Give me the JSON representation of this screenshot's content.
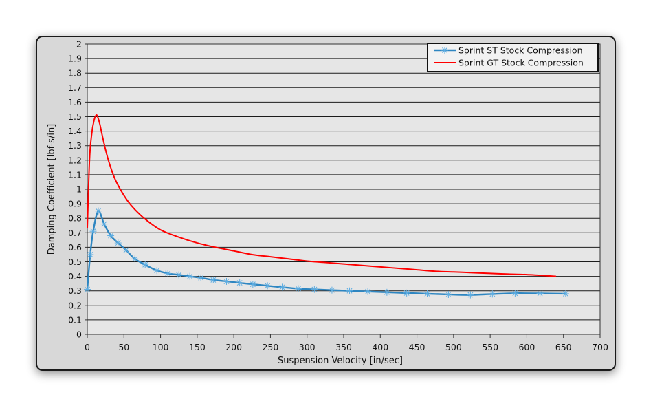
{
  "chart_data": {
    "type": "line",
    "xlabel": "Suspension Velocity [in/sec]",
    "ylabel": "Damping Coefficient  [lbf-s/in]",
    "xlim": [
      0,
      700
    ],
    "ylim": [
      0,
      2
    ],
    "x_ticks": [
      "0",
      "50",
      "100",
      "150",
      "200",
      "250",
      "300",
      "350",
      "400",
      "450",
      "500",
      "550",
      "600",
      "650",
      "700"
    ],
    "y_ticks": [
      "0",
      "0.1",
      "0.2",
      "0.3",
      "0.4",
      "0.5",
      "0.6",
      "0.7",
      "0.8",
      "0.9",
      "1",
      "1.1",
      "1.2",
      "1.3",
      "1.4",
      "1.5",
      "1.6",
      "1.7",
      "1.8",
      "1.9",
      "2"
    ],
    "grid": "horizontal",
    "legend_position": "top-right",
    "series": [
      {
        "name": "Sprint ST Stock Compression",
        "color": "#2e86c1",
        "marker": "asterisk",
        "x": [
          0,
          4,
          8,
          15,
          23,
          32,
          42,
          53,
          65,
          79,
          95,
          110,
          125,
          140,
          155,
          172,
          190,
          208,
          226,
          246,
          266,
          288,
          310,
          334,
          358,
          383,
          409,
          436,
          464,
          493,
          523,
          553,
          584,
          618,
          653
        ],
        "y": [
          0.31,
          0.55,
          0.71,
          0.85,
          0.76,
          0.68,
          0.63,
          0.58,
          0.52,
          0.48,
          0.44,
          0.42,
          0.41,
          0.4,
          0.39,
          0.375,
          0.365,
          0.355,
          0.345,
          0.335,
          0.325,
          0.315,
          0.31,
          0.305,
          0.3,
          0.295,
          0.29,
          0.285,
          0.28,
          0.275,
          0.272,
          0.278,
          0.283,
          0.282,
          0.28
        ]
      },
      {
        "name": "Sprint GT Stock Compression",
        "color": "#ff0000",
        "marker": "none",
        "x": [
          0,
          3,
          6,
          9,
          12,
          14,
          17,
          20,
          25,
          30,
          37,
          45,
          55,
          65,
          80,
          100,
          125,
          150,
          175,
          200,
          225,
          250,
          275,
          300,
          325,
          350,
          375,
          400,
          425,
          450,
          475,
          500,
          525,
          550,
          575,
          600,
          625,
          640
        ],
        "y": [
          0.73,
          1.2,
          1.38,
          1.47,
          1.51,
          1.5,
          1.45,
          1.38,
          1.27,
          1.18,
          1.08,
          1.0,
          0.92,
          0.86,
          0.79,
          0.72,
          0.67,
          0.63,
          0.6,
          0.575,
          0.55,
          0.535,
          0.52,
          0.505,
          0.495,
          0.485,
          0.475,
          0.465,
          0.455,
          0.445,
          0.435,
          0.43,
          0.425,
          0.42,
          0.415,
          0.412,
          0.405,
          0.4
        ]
      }
    ]
  }
}
